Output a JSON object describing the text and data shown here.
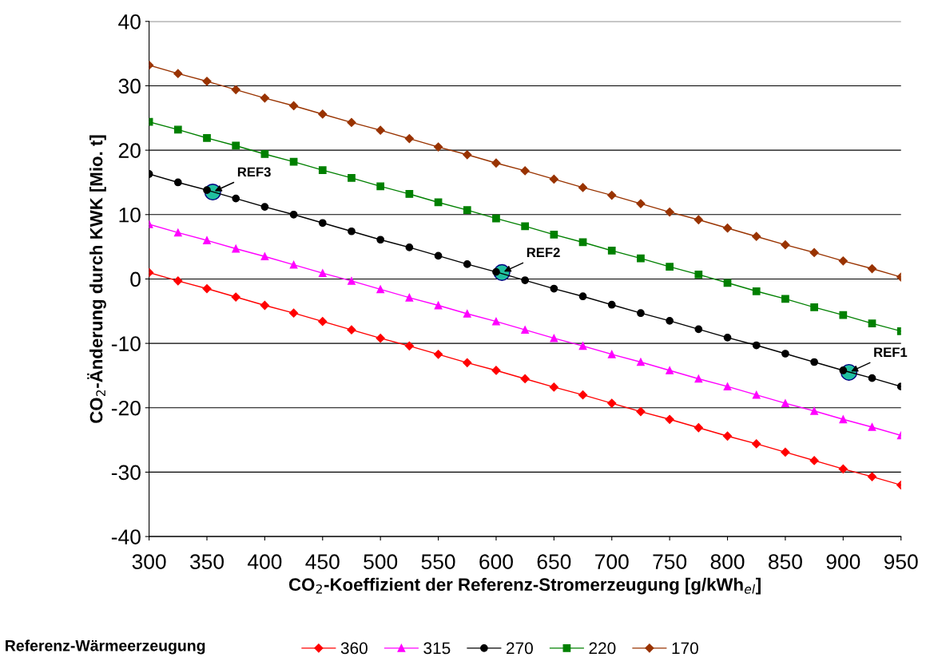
{
  "chart_data": {
    "type": "line",
    "xlabel": "CO$_{2}$-Koeffizient der Referenz-Stromerzeugung [g/kWh$_{el}$]",
    "ylabel": "CO$_{2}$-Änderung durch KWK [Mio. t]",
    "legend_title": "Referenz-Wärmeerzeugung",
    "x": [
      300,
      325,
      350,
      375,
      400,
      425,
      450,
      475,
      500,
      525,
      550,
      575,
      600,
      625,
      650,
      675,
      700,
      725,
      750,
      775,
      800,
      825,
      850,
      875,
      900,
      925,
      950
    ],
    "series": [
      {
        "name": "360",
        "color": "#ff0000",
        "marker": "diamond",
        "values": [
          1.0,
          -0.3,
          -1.5,
          -2.8,
          -4.1,
          -5.3,
          -6.6,
          -7.9,
          -9.2,
          -10.4,
          -11.7,
          -13.0,
          -14.2,
          -15.5,
          -16.8,
          -18.0,
          -19.3,
          -20.6,
          -21.8,
          -23.1,
          -24.4,
          -25.6,
          -26.9,
          -28.2,
          -29.5,
          -30.7,
          -32.0
        ]
      },
      {
        "name": "315",
        "color": "#ff00ff",
        "marker": "triangle",
        "values": [
          8.5,
          7.2,
          6.0,
          4.7,
          3.5,
          2.2,
          0.9,
          -0.3,
          -1.6,
          -2.9,
          -4.1,
          -5.4,
          -6.6,
          -7.9,
          -9.2,
          -10.4,
          -11.7,
          -12.9,
          -14.2,
          -15.5,
          -16.7,
          -18.0,
          -19.3,
          -20.5,
          -21.8,
          -23.0,
          -24.3
        ]
      },
      {
        "name": "270",
        "color": "#000000",
        "marker": "circle",
        "values": [
          16.3,
          15.0,
          13.8,
          12.5,
          11.2,
          10.0,
          8.7,
          7.4,
          6.1,
          4.9,
          3.6,
          2.3,
          1.1,
          -0.2,
          -1.5,
          -2.7,
          -4.0,
          -5.3,
          -6.5,
          -7.8,
          -9.1,
          -10.3,
          -11.6,
          -12.9,
          -14.2,
          -15.4,
          -16.7
        ]
      },
      {
        "name": "220",
        "color": "#008000",
        "marker": "square",
        "values": [
          24.4,
          23.2,
          21.9,
          20.7,
          19.4,
          18.2,
          16.9,
          15.7,
          14.4,
          13.2,
          11.9,
          10.7,
          9.4,
          8.2,
          6.9,
          5.7,
          4.4,
          3.2,
          1.9,
          0.7,
          -0.6,
          -1.9,
          -3.1,
          -4.4,
          -5.6,
          -6.9,
          -8.1
        ]
      },
      {
        "name": "170",
        "color": "#993300",
        "marker": "diamond",
        "values": [
          33.2,
          31.9,
          30.7,
          29.4,
          28.1,
          26.9,
          25.6,
          24.3,
          23.1,
          21.8,
          20.5,
          19.3,
          18.0,
          16.8,
          15.5,
          14.2,
          13.0,
          11.7,
          10.4,
          9.2,
          7.9,
          6.6,
          5.3,
          4.1,
          2.8,
          1.6,
          0.3
        ]
      },
      {
        "type": "scatter",
        "color": "#20c0a0",
        "marker": "circle",
        "x": [
          355,
          605,
          905
        ],
        "values": [
          13.5,
          1.0,
          -14.5
        ]
      }
    ],
    "annotations": [
      {
        "text": "REF3",
        "x": 355,
        "y": 13.5
      },
      {
        "text": "REF2",
        "x": 605,
        "y": 1.0
      },
      {
        "text": "REF1",
        "x": 905,
        "y": -14.5
      }
    ],
    "xlim": [
      300,
      950
    ],
    "xticks": [
      300,
      350,
      400,
      450,
      500,
      550,
      600,
      650,
      700,
      750,
      800,
      850,
      900,
      950
    ],
    "ylim": [
      -40,
      40
    ],
    "yticks": [
      -40,
      -30,
      -20,
      -10,
      0,
      10,
      20,
      30,
      40
    ],
    "grid": "y",
    "legend": "bottom",
    "line_style": "solid"
  }
}
